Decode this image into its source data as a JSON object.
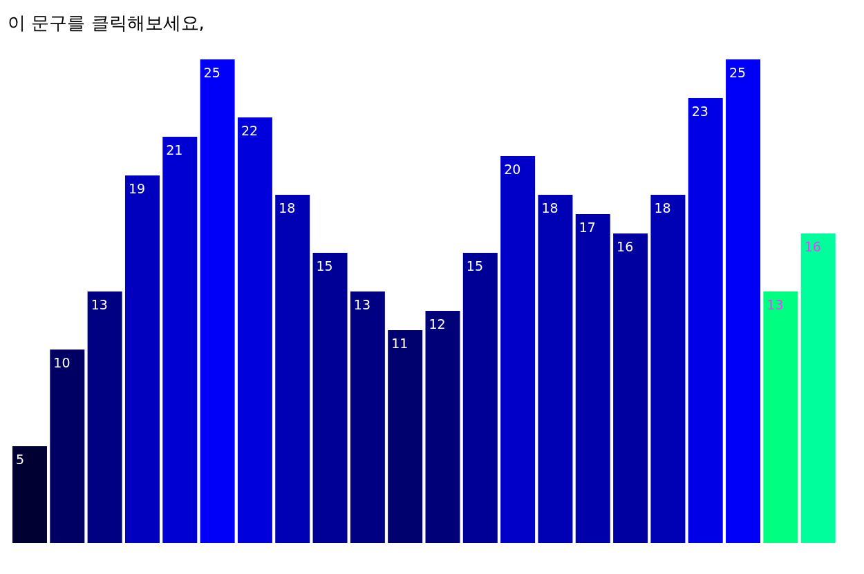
{
  "chart_data": {
    "type": "bar",
    "title": "이 문구를 클릭해보세요,",
    "categories": [
      null,
      null,
      null,
      null,
      null,
      null,
      null,
      null,
      null,
      null,
      null,
      null,
      null,
      null,
      null,
      null,
      null,
      null,
      null,
      null,
      null,
      null
    ],
    "values": [
      5,
      10,
      13,
      19,
      21,
      25,
      22,
      18,
      15,
      13,
      11,
      12,
      15,
      20,
      18,
      17,
      16,
      18,
      23,
      25,
      13,
      16
    ],
    "colors": [
      "#000032",
      "#000064",
      "#000082",
      "#0000be",
      "#0000d2",
      "#0000fa",
      "#0000dc",
      "#0000b4",
      "#000096",
      "#000082",
      "#00006e",
      "#000078",
      "#000096",
      "#0000c8",
      "#0000b4",
      "#0000aa",
      "#0000a0",
      "#0000b4",
      "#0000e6",
      "#0000fa",
      "#00ff80",
      "#00ff9c"
    ],
    "data_labels": true,
    "grid": false,
    "legend": false
  }
}
